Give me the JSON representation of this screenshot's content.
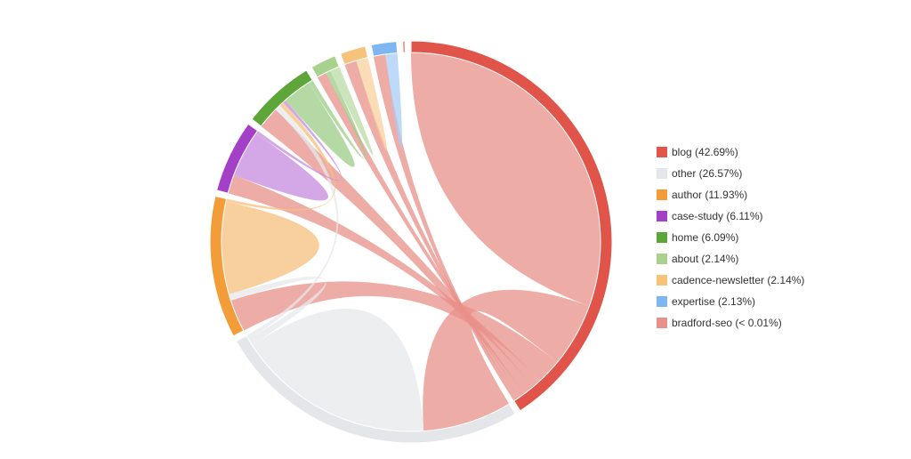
{
  "chart_data": {
    "type": "chord",
    "legend_position": "right",
    "groups": [
      {
        "name": "blog",
        "legend": "blog (42.69%)",
        "percent": 42.69,
        "color": "#e15449",
        "ribbon_color": "#e8908a"
      },
      {
        "name": "other",
        "legend": "other (26.57%)",
        "percent": 26.57,
        "color": "#e4e6ea",
        "ribbon_color": "#e6e8eb"
      },
      {
        "name": "author",
        "legend": "author (11.93%)",
        "percent": 11.93,
        "color": "#f39c3a",
        "ribbon_color": "#f5c07d"
      },
      {
        "name": "case-study",
        "legend": "case-study (6.11%)",
        "percent": 6.11,
        "color": "#a43fc7",
        "ribbon_color": "#c58bdd"
      },
      {
        "name": "home",
        "legend": "home (6.09%)",
        "percent": 6.09,
        "color": "#5ea53a",
        "ribbon_color": "#9ccc86"
      },
      {
        "name": "about",
        "legend": "about (2.14%)",
        "percent": 2.14,
        "color": "#a9d18e",
        "ribbon_color": "#b9dba4"
      },
      {
        "name": "cadence-newsletter",
        "legend": "cadence-newsletter (2.14%)",
        "percent": 2.14,
        "color": "#f7c27a",
        "ribbon_color": "#f8d29f"
      },
      {
        "name": "expertise",
        "legend": "expertise (2.13%)",
        "percent": 2.13,
        "color": "#7eb6f2",
        "ribbon_color": "#a8cdf5"
      },
      {
        "name": "bradford-seo",
        "legend": "bradford-seo (< 0.01%)",
        "percent": 0.01,
        "color": "#e8908a",
        "ribbon_color": "#eea9a4"
      }
    ],
    "flows": [
      {
        "from": "blog",
        "to": "blog",
        "value": 25.0
      },
      {
        "from": "blog",
        "to": "other",
        "value": 9.0
      },
      {
        "from": "blog",
        "to": "author",
        "value": 3.5
      },
      {
        "from": "blog",
        "to": "case-study",
        "value": 1.2
      },
      {
        "from": "blog",
        "to": "home",
        "value": 1.5
      },
      {
        "from": "blog",
        "to": "about",
        "value": 0.6
      },
      {
        "from": "blog",
        "to": "cadence-newsletter",
        "value": 0.6
      },
      {
        "from": "blog",
        "to": "expertise",
        "value": 0.6
      },
      {
        "from": "other",
        "to": "other",
        "value": 10.0
      },
      {
        "from": "other",
        "to": "author",
        "value": 0.7
      },
      {
        "from": "other",
        "to": "home",
        "value": 0.4
      },
      {
        "from": "author",
        "to": "author",
        "value": 5.0
      },
      {
        "from": "author",
        "to": "home",
        "value": 0.3
      },
      {
        "from": "case-study",
        "to": "case-study",
        "value": 1.5
      },
      {
        "from": "case-study",
        "to": "home",
        "value": 0.2
      },
      {
        "from": "home",
        "to": "home",
        "value": 1.0
      },
      {
        "from": "home",
        "to": "about",
        "value": 0.3
      },
      {
        "from": "about",
        "to": "about",
        "value": 0.3
      },
      {
        "from": "cadence-newsletter",
        "to": "cadence-newsletter",
        "value": 0.3
      },
      {
        "from": "expertise",
        "to": "expertise",
        "value": 0.3
      }
    ]
  }
}
